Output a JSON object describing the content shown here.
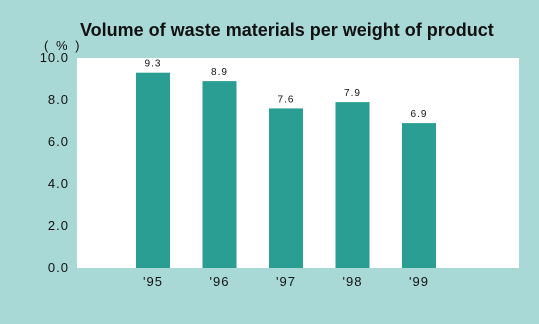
{
  "colors": {
    "background": "#a9d9d6",
    "plot_area": "#ffffff",
    "bar": "#2a9e92",
    "text": "#111111"
  },
  "chart_data": {
    "type": "bar",
    "title": "Volume of waste materials per weight of product",
    "unit_label": "( % )",
    "categories": [
      "'95",
      "'96",
      "'97",
      "'98",
      "'99"
    ],
    "values": [
      9.3,
      8.9,
      7.6,
      7.9,
      6.9
    ],
    "value_labels": [
      "9.3",
      "8.9",
      "7.6",
      "7.9",
      "6.9"
    ],
    "y_ticks": [
      "0.0",
      "2.0",
      "4.0",
      "6.0",
      "8.0",
      "10.0"
    ],
    "ylim": [
      0,
      10
    ],
    "grid": false,
    "legend": "none",
    "xlabel": "",
    "ylabel": ""
  }
}
